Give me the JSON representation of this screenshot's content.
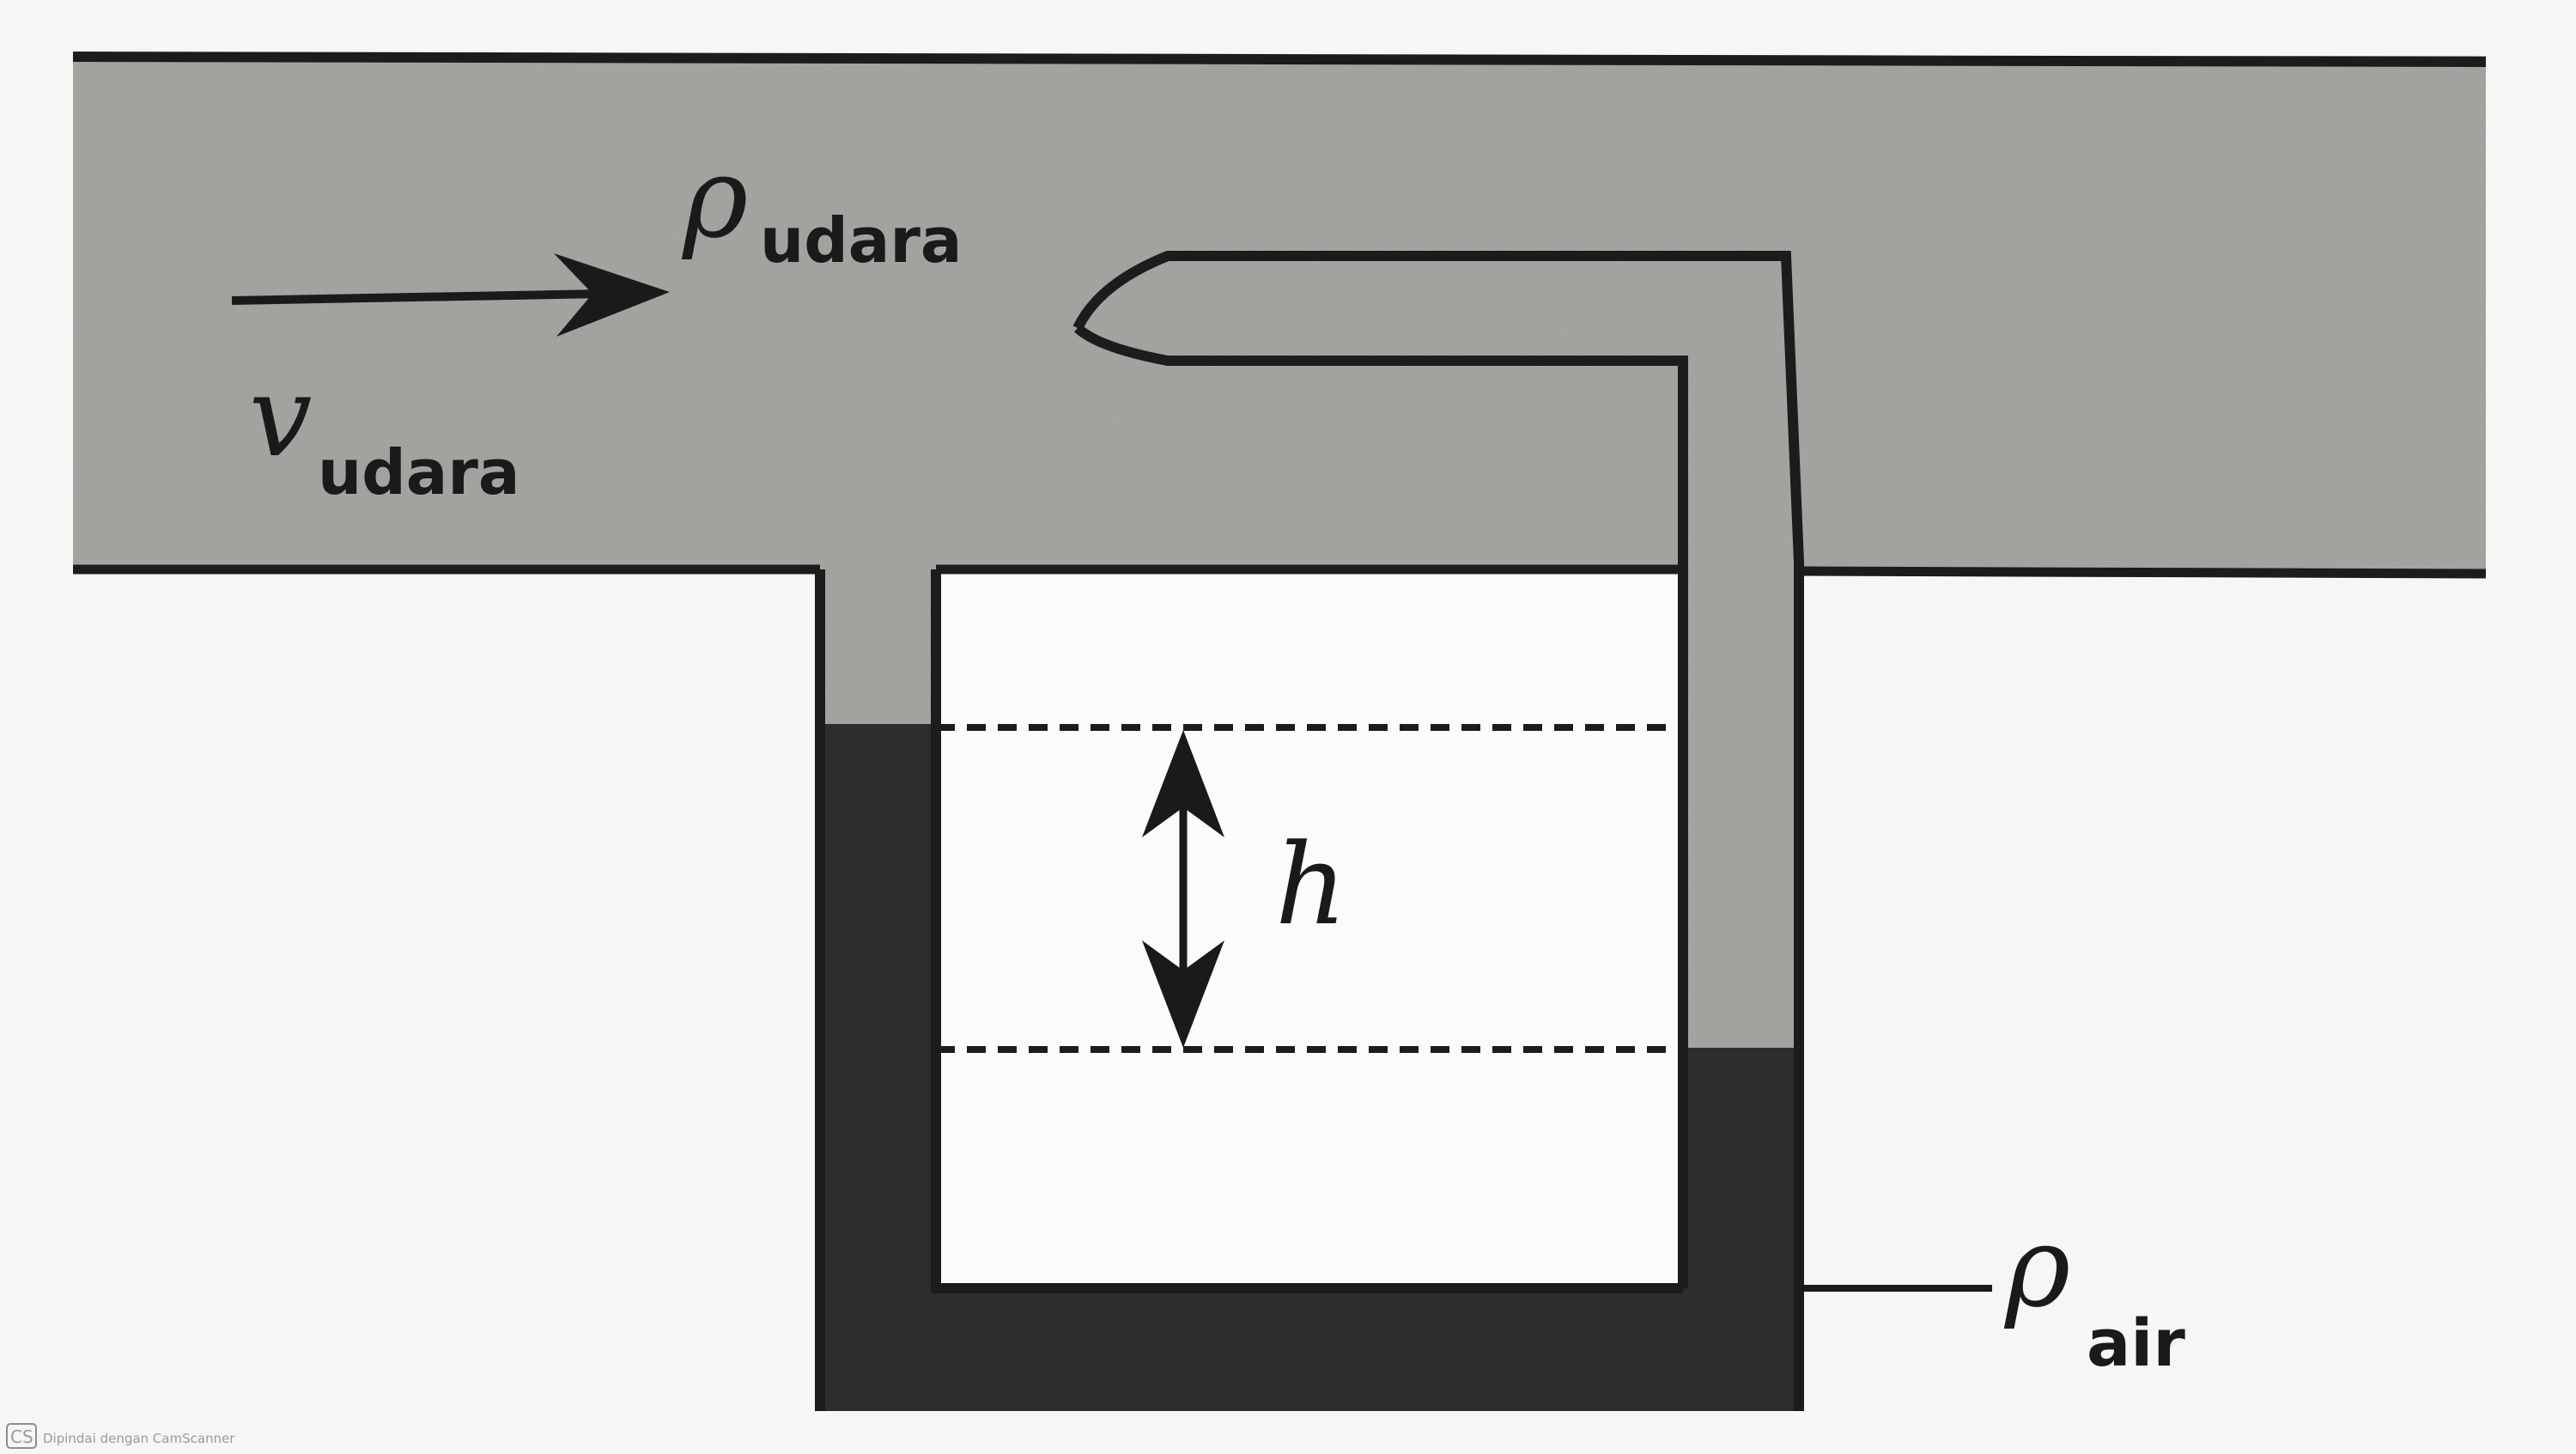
{
  "labels": {
    "rho_symbol_air_flow": "ρ",
    "rho_sub_air_flow": "udara",
    "velocity_symbol": "v",
    "velocity_sub": "udara",
    "height_symbol": "h",
    "rho_symbol_liquid": "ρ",
    "rho_sub_liquid": "air"
  },
  "watermark": {
    "logo": "CS",
    "text": "Dipindai dengan CamScanner"
  },
  "colors": {
    "air": "#a9a9a6",
    "liquid": "#2e2c2c",
    "background": "#f6f6f4",
    "stroke": "#1c1c1c"
  }
}
